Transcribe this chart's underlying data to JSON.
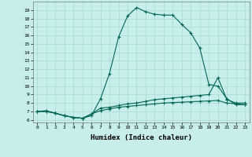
{
  "xlabel": "Humidex (Indice chaleur)",
  "bg_color": "#c8eeea",
  "grid_color": "#a8d8d0",
  "line_color": "#006655",
  "xlim_min": -0.5,
  "xlim_max": 23.5,
  "ylim_min": 5.7,
  "ylim_max": 20.0,
  "yticks": [
    6,
    7,
    8,
    9,
    10,
    11,
    12,
    13,
    14,
    15,
    16,
    17,
    18,
    19
  ],
  "xticks": [
    0,
    1,
    2,
    3,
    4,
    5,
    6,
    7,
    8,
    9,
    10,
    11,
    12,
    13,
    14,
    15,
    16,
    17,
    18,
    19,
    20,
    21,
    22,
    23
  ],
  "series1_x": [
    0,
    1,
    2,
    3,
    4,
    5,
    6,
    7,
    8,
    9,
    10,
    11,
    12,
    13,
    14,
    15,
    16,
    17,
    18,
    19,
    20,
    21,
    22,
    23
  ],
  "series1_y": [
    7.0,
    7.1,
    6.8,
    6.5,
    6.3,
    6.2,
    6.5,
    8.5,
    11.5,
    15.8,
    18.3,
    19.3,
    18.8,
    18.5,
    18.4,
    18.4,
    17.3,
    16.3,
    14.5,
    10.2,
    10.0,
    8.5,
    7.8,
    7.8
  ],
  "series2_x": [
    0,
    1,
    2,
    3,
    4,
    5,
    6,
    7,
    8,
    9,
    10,
    11,
    12,
    13,
    14,
    15,
    16,
    17,
    18,
    19,
    20,
    21,
    22,
    23
  ],
  "series2_y": [
    7.0,
    7.0,
    6.8,
    6.5,
    6.3,
    6.2,
    6.7,
    7.4,
    7.5,
    7.7,
    7.9,
    8.0,
    8.2,
    8.4,
    8.5,
    8.6,
    8.7,
    8.8,
    8.9,
    9.0,
    11.0,
    8.4,
    8.0,
    8.0
  ],
  "series3_x": [
    0,
    1,
    2,
    3,
    4,
    5,
    6,
    7,
    8,
    9,
    10,
    11,
    12,
    13,
    14,
    15,
    16,
    17,
    18,
    19,
    20,
    21,
    22,
    23
  ],
  "series3_y": [
    7.0,
    7.0,
    6.8,
    6.5,
    6.3,
    6.2,
    6.7,
    7.1,
    7.3,
    7.5,
    7.6,
    7.7,
    7.8,
    7.9,
    8.0,
    8.05,
    8.1,
    8.15,
    8.2,
    8.25,
    8.3,
    8.0,
    7.9,
    7.8
  ]
}
